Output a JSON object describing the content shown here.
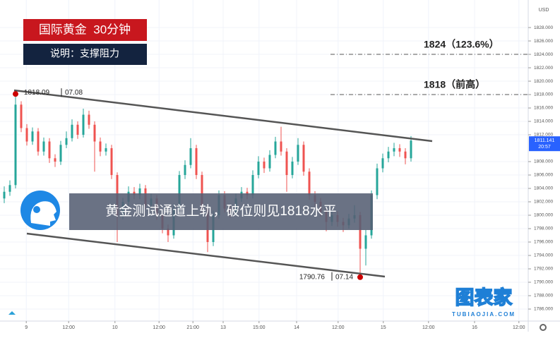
{
  "header": {
    "title": "国际黄金  30分钟",
    "subtitle": "说明：支撑阻力"
  },
  "banner": "黄金测试通道上轨，破位则见1818水平",
  "watermark": {
    "title": "图表家",
    "url": "TUBIAOJIA.COM"
  },
  "chart_data": {
    "type": "candlestick",
    "currency": "USD",
    "up_color": "#26a69a",
    "down_color": "#ef5350",
    "open": [
      1802.5,
      1803.5,
      1804.5,
      1816.5,
      1813,
      1811,
      1812.5,
      1809.5,
      1811,
      1808.5,
      1808,
      1810.5,
      1811.5,
      1813.5,
      1812,
      1815,
      1813.5,
      1811,
      1809.5,
      1810,
      1806,
      1800,
      1802,
      1803.5,
      1803,
      1804,
      1801.5,
      1802.5,
      1800,
      1798,
      1797,
      1801,
      1806,
      1807.5,
      1810,
      1806,
      1801,
      1796,
      1800,
      1803,
      1801,
      1800.5,
      1802.5,
      1803.5,
      1803,
      1806,
      1808,
      1807,
      1809,
      1811,
      1809.5,
      1806,
      1808,
      1810.5,
      1806.5,
      1803,
      1802,
      1800.5,
      1799,
      1800,
      1799,
      1798.5,
      1799.5,
      1800,
      1795,
      1797,
      1803,
      1807,
      1808.5,
      1809.5,
      1810,
      1809.5,
      1808.5
    ],
    "high": [
      1804.3,
      1805.2,
      1818.09,
      1817,
      1813.6,
      1813.1,
      1813,
      1811.6,
      1811.5,
      1809.1,
      1811.1,
      1812.5,
      1814.3,
      1814,
      1815.9,
      1815.6,
      1814,
      1811.6,
      1810.7,
      1810.5,
      1806.4,
      1802.6,
      1804.3,
      1804.2,
      1804.7,
      1804.5,
      1803.2,
      1803,
      1800.6,
      1798.6,
      1801.7,
      1806.6,
      1808.2,
      1811.5,
      1810.5,
      1806.5,
      1801.5,
      1800.7,
      1803.7,
      1803.6,
      1801.6,
      1803.2,
      1804.2,
      1804.1,
      1806.7,
      1808.8,
      1808.6,
      1809.7,
      1811.7,
      1813.2,
      1810,
      1808.7,
      1811.5,
      1811,
      1807,
      1803.6,
      1802.6,
      1801,
      1800.7,
      1800.6,
      1799.6,
      1800.2,
      1801.5,
      1800.5,
      1797.8,
      1803.7,
      1807.7,
      1809.2,
      1810.2,
      1810.8,
      1810.6,
      1810,
      1811.8
    ],
    "low": [
      1801.8,
      1802.9,
      1804,
      1812.4,
      1810.4,
      1810.5,
      1808.9,
      1808.9,
      1807.8,
      1807.2,
      1807.5,
      1810,
      1811,
      1811.4,
      1811.6,
      1812.9,
      1806.5,
      1808.8,
      1808.9,
      1805.4,
      1796,
      1799.4,
      1801.4,
      1802.4,
      1802.4,
      1800.9,
      1800.9,
      1799.3,
      1797.3,
      1796,
      1796.5,
      1800.5,
      1805.4,
      1807,
      1805.4,
      1800.3,
      1794.5,
      1795.4,
      1799.5,
      1800.4,
      1799.6,
      1800,
      1802,
      1802.4,
      1802.5,
      1805.5,
      1806.3,
      1806.5,
      1808.5,
      1808.9,
      1803.5,
      1805.5,
      1807.5,
      1805.9,
      1802.3,
      1801.3,
      1799.8,
      1797.6,
      1798.4,
      1798.3,
      1797.5,
      1798,
      1798.9,
      1790.76,
      1792.5,
      1796.5,
      1802.4,
      1806.4,
      1807.9,
      1808.8,
      1808.7,
      1807.6,
      1808
    ],
    "close": [
      1803.5,
      1804.5,
      1816.5,
      1813,
      1811,
      1812.5,
      1809.5,
      1811,
      1808.5,
      1808,
      1810.5,
      1811.5,
      1813.5,
      1812,
      1815,
      1813.5,
      1811,
      1809.5,
      1810,
      1806,
      1800,
      1802,
      1803.5,
      1803,
      1804,
      1801.5,
      1802.5,
      1800,
      1798,
      1797,
      1801,
      1806,
      1807.5,
      1810,
      1806,
      1801,
      1796,
      1800,
      1803,
      1801,
      1800.5,
      1802.5,
      1803.5,
      1803,
      1806,
      1808,
      1807,
      1809,
      1811,
      1809.5,
      1806,
      1808,
      1810.5,
      1806.5,
      1803,
      1802,
      1800.5,
      1799,
      1800,
      1799,
      1798.5,
      1799.5,
      1800,
      1795,
      1797,
      1803,
      1807,
      1808.5,
      1809.5,
      1810,
      1809.5,
      1808.5,
      1811.141
    ],
    "last_time": "20:57",
    "extremes": {
      "high_date": "07.08",
      "low_date": "07.14"
    },
    "levels": [
      {
        "value": 1824,
        "label": "1824（123.6%）"
      },
      {
        "value": 1818,
        "label": "1818（前高）"
      }
    ],
    "xlim": [
      -0.75,
      92.75
    ],
    "xticks": [
      {
        "value": 3.9,
        "label": "9"
      },
      {
        "value": 11.4,
        "label": "12:00"
      },
      {
        "value": 19.6,
        "label": "10"
      },
      {
        "value": 27.4,
        "label": "12:00"
      },
      {
        "value": 33.4,
        "label": "21:00"
      },
      {
        "value": 38.75,
        "label": "13"
      },
      {
        "value": 45.1,
        "label": "15:00"
      },
      {
        "value": 51.75,
        "label": "14"
      },
      {
        "value": 59.1,
        "label": "12:00"
      },
      {
        "value": 67.1,
        "label": "15"
      },
      {
        "value": 75.1,
        "label": "12:00"
      },
      {
        "value": 83.25,
        "label": "16"
      },
      {
        "value": 91.1,
        "label": "12:00"
      }
    ],
    "ylim": [
      1784.21,
      1832.11
    ],
    "yticks": [
      {
        "value": 1786,
        "label": "1786.000"
      },
      {
        "value": 1788,
        "label": "1788.000"
      },
      {
        "value": 1790,
        "label": "1790.000"
      },
      {
        "value": 1792,
        "label": "1792.000"
      },
      {
        "value": 1794,
        "label": "1794.000"
      },
      {
        "value": 1796,
        "label": "1796.000"
      },
      {
        "value": 1798,
        "label": "1798.000"
      },
      {
        "value": 1800,
        "label": "1800.000"
      },
      {
        "value": 1802,
        "label": "1802.000"
      },
      {
        "value": 1804,
        "label": "1804.000"
      },
      {
        "value": 1806,
        "label": "1806.000"
      },
      {
        "value": 1808,
        "label": "1808.000"
      },
      {
        "value": 1812,
        "label": "1812.000"
      },
      {
        "value": 1814,
        "label": "1814.000"
      },
      {
        "value": 1816,
        "label": "1816.000"
      },
      {
        "value": 1818,
        "label": "1818.000"
      },
      {
        "value": 1820,
        "label": "1820.000"
      },
      {
        "value": 1822,
        "label": "1822.000"
      },
      {
        "value": 1824,
        "label": "1824.000"
      },
      {
        "value": 1826,
        "label": "1826.000"
      },
      {
        "value": 1828,
        "label": "1828.000"
      }
    ],
    "grid": true
  }
}
